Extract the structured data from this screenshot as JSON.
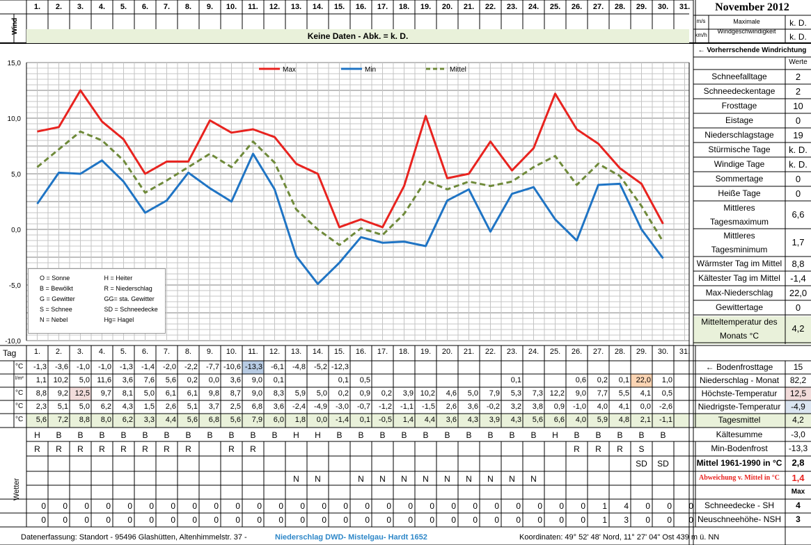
{
  "title": "November 2012",
  "days": [
    "1.",
    "2.",
    "3.",
    "4.",
    "5.",
    "6.",
    "7.",
    "8.",
    "9.",
    "10.",
    "11.",
    "12.",
    "13.",
    "14.",
    "15.",
    "16.",
    "17.",
    "18.",
    "19.",
    "20.",
    "21.",
    "22.",
    "23.",
    "24.",
    "25.",
    "26.",
    "27.",
    "28.",
    "29.",
    "30.",
    "31."
  ],
  "wind": {
    "label": "Wind",
    "no_data": "Keine Daten - Abk. = k. D.",
    "unit_ms": "m/s",
    "unit_kmh": "km/h",
    "max_label": "Maximale Windgeschwindigkeit",
    "max_ms": "k. D.",
    "max_kmh": "k. D.",
    "dir_label": "← Vorherrschende Windrichtung"
  },
  "stats_header": "Werte",
  "stats": [
    {
      "label": "Schneefalltage",
      "value": "2"
    },
    {
      "label": "Schneedeckentage",
      "value": "2"
    },
    {
      "label": "Frosttage",
      "value": "10"
    },
    {
      "label": "Eistage",
      "value": "0"
    },
    {
      "label": "Niederschlagstage",
      "value": "19"
    },
    {
      "label": "Stürmische Tage",
      "value": "k. D."
    },
    {
      "label": "Windige Tage",
      "value": "k. D."
    },
    {
      "label": "Sommertage",
      "value": "0"
    },
    {
      "label": "Heiße Tage",
      "value": "0"
    },
    {
      "label": "Mittleres Tagesmaximum",
      "value": "6,6"
    },
    {
      "label": "Mittleres Tagesminimum",
      "value": "1,7"
    },
    {
      "label": "Wärmster Tag im Mittel",
      "value": "8,8"
    },
    {
      "label": "Kältester Tag im Mittel",
      "value": "-1,4"
    },
    {
      "label": "Max-Niederschlag",
      "value": "22,0"
    },
    {
      "label": "Gewittertage",
      "value": "0"
    },
    {
      "label": "Mitteltemperatur des Monats °C",
      "value": "4,2"
    }
  ],
  "legend_box": [
    [
      "O = Sonne",
      "H = Heiter"
    ],
    [
      "B = Bewölkt",
      "R = Niederschlag"
    ],
    [
      "G = Gewitter",
      "GG= sta. Gewitter"
    ],
    [
      "S = Schnee",
      "SD = Schneedecke"
    ],
    [
      "N = Nebel",
      "Hg= Hagel"
    ]
  ],
  "chart_data": {
    "type": "line",
    "title": "November 2012",
    "x": [
      1,
      2,
      3,
      4,
      5,
      6,
      7,
      8,
      9,
      10,
      11,
      12,
      13,
      14,
      15,
      16,
      17,
      18,
      19,
      20,
      21,
      22,
      23,
      24,
      25,
      26,
      27,
      28,
      29,
      30
    ],
    "ylim": [
      -10,
      15
    ],
    "yticks": [
      "15,0",
      "10,0",
      "5,0",
      "0,0",
      "-5,0",
      "-10,0"
    ],
    "legend": [
      "Max",
      "Min",
      "Mittel"
    ],
    "series": [
      {
        "name": "Max",
        "color": "#e8231f",
        "dashed": false,
        "values": [
          8.8,
          9.2,
          12.5,
          9.7,
          8.1,
          5.0,
          6.1,
          6.1,
          9.8,
          8.7,
          9.0,
          8.3,
          5.9,
          5.0,
          0.2,
          0.9,
          0.2,
          3.9,
          10.2,
          4.6,
          5.0,
          7.9,
          5.3,
          7.3,
          12.2,
          9.0,
          7.7,
          5.5,
          4.1,
          0.5
        ]
      },
      {
        "name": "Min",
        "color": "#1f74c4",
        "dashed": false,
        "values": [
          2.3,
          5.1,
          5.0,
          6.2,
          4.3,
          1.5,
          2.6,
          5.1,
          3.7,
          2.5,
          6.8,
          3.6,
          -2.4,
          -4.9,
          -3.0,
          -0.7,
          -1.2,
          -1.1,
          -1.5,
          2.6,
          3.6,
          -0.2,
          3.2,
          3.8,
          0.9,
          -1.0,
          4.0,
          4.1,
          0.0,
          -2.6
        ]
      },
      {
        "name": "Mittel",
        "color": "#6f8a3a",
        "dashed": true,
        "values": [
          5.6,
          7.2,
          8.8,
          8.0,
          6.2,
          3.3,
          4.4,
          5.6,
          6.8,
          5.6,
          7.9,
          6.0,
          1.8,
          0.0,
          -1.4,
          0.1,
          -0.5,
          1.4,
          4.4,
          3.6,
          4.3,
          3.9,
          4.3,
          5.6,
          6.6,
          4.0,
          5.9,
          4.8,
          2.1,
          -1.1
        ]
      }
    ]
  },
  "table": {
    "tag_label": "Tag",
    "rows": [
      {
        "unit": "°C",
        "label": "← Bodenfrosttage",
        "total": "15",
        "values": [
          "-1,3",
          "-3,6",
          "-1,0",
          "-1,0",
          "-1,3",
          "-1,4",
          "-2,0",
          "-2,2",
          "-7,7",
          "-10,6",
          "-13,3",
          "-6,1",
          "-4,8",
          "-5,2",
          "-12,3",
          "",
          "",
          "",
          "",
          "",
          "",
          "",
          "",
          "",
          "",
          "",
          "",
          "",
          "",
          "",
          ""
        ]
      },
      {
        "unit": "l/m²",
        "label": "Niederschlag - Monat",
        "total": "82,2",
        "values": [
          "1,1",
          "10,2",
          "5,0",
          "11,6",
          "3,6",
          "7,6",
          "5,6",
          "0,2",
          "0,0",
          "3,6",
          "9,0",
          "0,1",
          "",
          "",
          "0,1",
          "0,5",
          "",
          "",
          "",
          "",
          "",
          "",
          "0,1",
          "",
          "",
          "0,6",
          "0,2",
          "0,1",
          "22,0",
          "1,0",
          ""
        ]
      },
      {
        "unit": "°C",
        "label": "Höchste-Temperatur",
        "total": "12,5",
        "values": [
          "8,8",
          "9,2",
          "12,5",
          "9,7",
          "8,1",
          "5,0",
          "6,1",
          "6,1",
          "9,8",
          "8,7",
          "9,0",
          "8,3",
          "5,9",
          "5,0",
          "0,2",
          "0,9",
          "0,2",
          "3,9",
          "10,2",
          "4,6",
          "5,0",
          "7,9",
          "5,3",
          "7,3",
          "12,2",
          "9,0",
          "7,7",
          "5,5",
          "4,1",
          "0,5",
          ""
        ]
      },
      {
        "unit": "°C",
        "label": "Niedrigste-Temperatur",
        "total": "-4,9",
        "values": [
          "2,3",
          "5,1",
          "5,0",
          "6,2",
          "4,3",
          "1,5",
          "2,6",
          "5,1",
          "3,7",
          "2,5",
          "6,8",
          "3,6",
          "-2,4",
          "-4,9",
          "-3,0",
          "-0,7",
          "-1,2",
          "-1,1",
          "-1,5",
          "2,6",
          "3,6",
          "-0,2",
          "3,2",
          "3,8",
          "0,9",
          "-1,0",
          "4,0",
          "4,1",
          "0,0",
          "-2,6",
          ""
        ]
      },
      {
        "unit": "°C",
        "label": "Tagesmittel",
        "total": "4,2",
        "values": [
          "5,6",
          "7,2",
          "8,8",
          "8,0",
          "6,2",
          "3,3",
          "4,4",
          "5,6",
          "6,8",
          "5,6",
          "7,9",
          "6,0",
          "1,8",
          "0,0",
          "-1,4",
          "0,1",
          "-0,5",
          "1,4",
          "4,4",
          "3,6",
          "4,3",
          "3,9",
          "4,3",
          "5,6",
          "6,6",
          "4,0",
          "5,9",
          "4,8",
          "2,1",
          "-1,1",
          ""
        ]
      }
    ],
    "extra_rows": [
      {
        "label": "Kältesumme",
        "value": "-3,0"
      },
      {
        "label": "Min-Bodenfrost",
        "value": "-13,3"
      },
      {
        "label": "Mittel 1961-1990 in °C",
        "value": "2,8"
      },
      {
        "label": "Abweichung v. Mittel in °C",
        "value": "1,4"
      },
      {
        "label": "",
        "value": "Max"
      }
    ],
    "weather_label": "Wetter",
    "weather": [
      [
        "H",
        "B",
        "B",
        "B",
        "B",
        "B",
        "B",
        "B",
        "B",
        "B",
        "B",
        "B",
        "H",
        "H",
        "B",
        "B",
        "B",
        "B",
        "B",
        "B",
        "B",
        "B",
        "B",
        "B",
        "H",
        "B",
        "B",
        "B",
        "B",
        "B",
        ""
      ],
      [
        "R",
        "R",
        "R",
        "R",
        "R",
        "R",
        "R",
        "R",
        "",
        "R",
        "R",
        "",
        "",
        "",
        "",
        "",
        "",
        "",
        "",
        "",
        "",
        "",
        "",
        "",
        "",
        "R",
        "R",
        "R",
        "S",
        "",
        ""
      ],
      [
        "",
        "",
        "",
        "",
        "",
        "",
        "",
        "",
        "",
        "",
        "",
        "",
        "",
        "",
        "",
        "",
        "",
        "",
        "",
        "",
        "",
        "",
        "",
        "",
        "",
        "",
        "",
        "",
        "SD",
        "SD",
        ""
      ],
      [
        "",
        "",
        "",
        "",
        "",
        "",
        "",
        "",
        "",
        "",
        "",
        "",
        "N",
        "N",
        "",
        "N",
        "N",
        "N",
        "N",
        "N",
        "N",
        "N",
        "N",
        "N",
        "",
        "",
        "",
        "",
        "",
        "",
        ""
      ]
    ],
    "snow": [
      {
        "label": "Schneedecke -  SH",
        "max": "4",
        "values": [
          "0",
          "0",
          "0",
          "0",
          "0",
          "0",
          "0",
          "0",
          "0",
          "0",
          "0",
          "0",
          "0",
          "0",
          "0",
          "0",
          "0",
          "0",
          "0",
          "0",
          "0",
          "0",
          "0",
          "0",
          "0",
          "0",
          "1",
          "4",
          "0",
          "0",
          "0"
        ]
      },
      {
        "label": "Neuschneehöhe- NSH",
        "max": "3",
        "values": [
          "0",
          "0",
          "0",
          "0",
          "0",
          "0",
          "0",
          "0",
          "0",
          "0",
          "0",
          "0",
          "0",
          "0",
          "0",
          "0",
          "0",
          "0",
          "0",
          "0",
          "0",
          "0",
          "0",
          "0",
          "0",
          "0",
          "1",
          "3",
          "0",
          "0",
          "0"
        ]
      }
    ]
  },
  "footer": {
    "left": "Datenerfassung:  Standort -  95496  Glashütten, Altenhimmelstr. 37 -",
    "link": "Niederschlag DWD- Mistelgau- Hardt 1652",
    "right": "Koordinaten:  49° 52' 48' Nord,   11° 27' 04\" Ost   439 m ü. NN"
  }
}
